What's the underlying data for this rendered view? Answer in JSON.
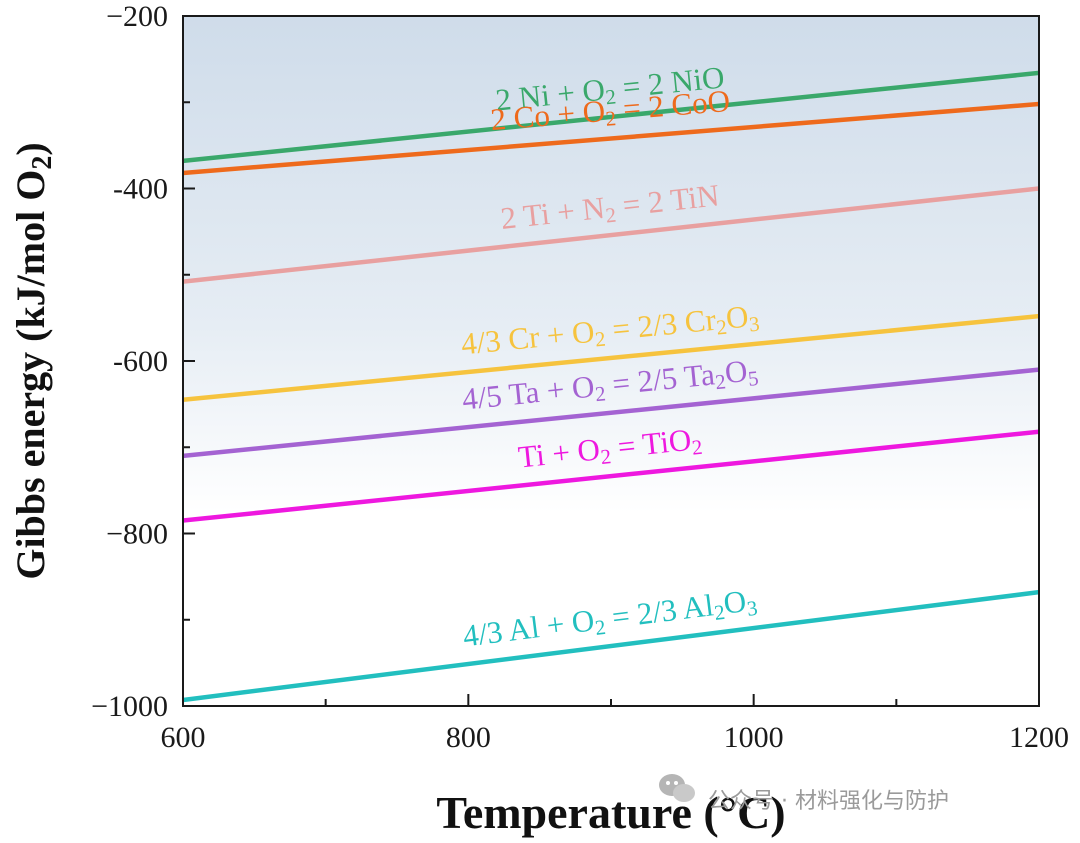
{
  "chart_data": {
    "type": "line",
    "title": "",
    "xlabel": "Temperature (°C)",
    "ylabel": "Gibbs energy (kJ/mol O2)",
    "ylabel_parts": {
      "main": "Gibbs energy (kJ/mol O",
      "sub": "2",
      "end": ")"
    },
    "xlim": [
      600,
      1200
    ],
    "ylim": [
      -1000,
      -200
    ],
    "x_major_ticks": [
      600,
      800,
      1000,
      1200
    ],
    "x_tick_labels": [
      "600",
      "800",
      "1000",
      "1200"
    ],
    "x_minor_ticks": [
      700,
      900,
      1100
    ],
    "y_major_ticks": [
      -200,
      -400,
      -600,
      -800,
      -1000
    ],
    "y_tick_labels": [
      "−200",
      "-400",
      "-600",
      "−800",
      "−1000"
    ],
    "y_minor_ticks": [
      -300,
      -500,
      -700,
      -900
    ],
    "grid": false,
    "background": {
      "gradient_top": "#cfdcea",
      "gradient_bottom": "#ffffff"
    },
    "series": [
      {
        "name": "2 Ni + O2 = 2 NiO",
        "color": "#3aa86b",
        "label_parts": [
          {
            "t": "2 Ni + O"
          },
          {
            "t": "2",
            "sub": true
          },
          {
            "t": " = 2 NiO"
          }
        ],
        "x": [
          600,
          1200
        ],
        "y": [
          -368,
          -266
        ]
      },
      {
        "name": "2 Co + O2 = 2 CoO",
        "color": "#ee6a1c",
        "label_parts": [
          {
            "t": "2 Co + O"
          },
          {
            "t": "2",
            "sub": true
          },
          {
            "t": " = 2 CoO"
          }
        ],
        "x": [
          600,
          1200
        ],
        "y": [
          -382,
          -302
        ]
      },
      {
        "name": "2 Ti + N2 = 2 TiN",
        "color": "#e8a0a0",
        "label_parts": [
          {
            "t": "2 Ti + N"
          },
          {
            "t": "2",
            "sub": true
          },
          {
            "t": " = 2 TiN"
          }
        ],
        "x": [
          600,
          1200
        ],
        "y": [
          -508,
          -400
        ]
      },
      {
        "name": "4/3 Cr + O2 = 2/3 Cr2O3",
        "color": "#f6c33e",
        "label_parts": [
          {
            "t": "4/3 Cr + O"
          },
          {
            "t": "2",
            "sub": true
          },
          {
            "t": " = 2/3 Cr"
          },
          {
            "t": "2",
            "sub": true
          },
          {
            "t": "O"
          },
          {
            "t": "3",
            "sub": true
          }
        ],
        "x": [
          600,
          1200
        ],
        "y": [
          -645,
          -548
        ]
      },
      {
        "name": "4/5 Ta + O2 = 2/5 Ta2O5",
        "color": "#a463d2",
        "label_parts": [
          {
            "t": "4/5 Ta + O"
          },
          {
            "t": "2",
            "sub": true
          },
          {
            "t": " = 2/5 Ta"
          },
          {
            "t": "2",
            "sub": true
          },
          {
            "t": "O"
          },
          {
            "t": "5",
            "sub": true
          }
        ],
        "x": [
          600,
          1200
        ],
        "y": [
          -710,
          -610
        ]
      },
      {
        "name": "Ti + O2 =  TiO2",
        "color": "#ee18df",
        "label_parts": [
          {
            "t": "Ti + O"
          },
          {
            "t": "2",
            "sub": true
          },
          {
            "t": " =  TiO"
          },
          {
            "t": "2",
            "sub": true
          }
        ],
        "x": [
          600,
          1200
        ],
        "y": [
          -785,
          -682
        ]
      },
      {
        "name": "4/3 Al + O2 =  2/3 Al2O3",
        "color": "#22bfbf",
        "label_parts": [
          {
            "t": "4/3 Al + O"
          },
          {
            "t": "2",
            "sub": true
          },
          {
            "t": " =  2/3 Al"
          },
          {
            "t": "2",
            "sub": true
          },
          {
            "t": "O"
          },
          {
            "t": "3",
            "sub": true
          }
        ],
        "x": [
          600,
          1200
        ],
        "y": [
          -993,
          -868
        ]
      }
    ]
  },
  "watermark": {
    "text": "公众号 · 材料强化与防护"
  }
}
